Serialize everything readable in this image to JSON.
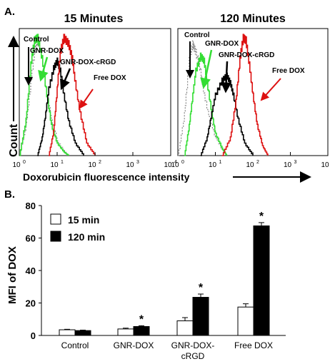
{
  "panel_a": {
    "label": "A.",
    "left_title": "15 Minutes",
    "right_title": "120 Minutes",
    "ylabel": "Count",
    "xlabel": "Doxorubicin fluorescence intensity",
    "x_ticks": [
      {
        "base": "10",
        "exp": "0",
        "value": 1
      },
      {
        "base": "10",
        "exp": "1",
        "value": 10
      },
      {
        "base": "10",
        "exp": "2",
        "value": 100
      },
      {
        "base": "10",
        "exp": "3",
        "value": 1000
      },
      {
        "base": "10",
        "exp": "4",
        "value": 10000
      }
    ],
    "left_annotations": [
      "Control",
      "GNR-DOX",
      "GNR-DOX-cRGD",
      "Free DOX"
    ],
    "right_annotations": [
      "Control",
      "GNR-DOX",
      "GNR-DOX-cRGD",
      "Free DOX"
    ],
    "colors": {
      "control": "#888888",
      "gnr_dox": "#33dd33",
      "gnr_dox_crgd": "#000000",
      "free_dox": "#dd1111"
    }
  },
  "panel_b": {
    "label": "B.",
    "ylabel": "MFI of DOX",
    "legend": [
      "15 min",
      "120 min"
    ],
    "y_ticks": [
      "0",
      "20",
      "40",
      "60",
      "80"
    ],
    "categories": [
      "Control",
      "GNR-DOX",
      "GNR-DOX-\ncRGD",
      "Free DOX"
    ],
    "significance_mark": "*"
  },
  "chart_data": [
    {
      "type": "line",
      "title": "15 Minutes",
      "xlabel": "Doxorubicin fluorescence intensity",
      "ylabel": "Count",
      "x_scale": "log",
      "xlim": [
        1,
        10000
      ],
      "series": [
        {
          "name": "Control",
          "style": "dotted",
          "color": "#888888",
          "x": [
            1,
            1.5,
            2,
            2.5,
            3,
            4,
            5,
            7,
            10,
            15,
            20
          ],
          "y": [
            0,
            0.25,
            0.6,
            0.85,
            0.95,
            0.8,
            0.55,
            0.3,
            0.12,
            0.04,
            0
          ]
        },
        {
          "name": "GNR-DOX",
          "style": "solid",
          "color": "#33dd33",
          "x": [
            1,
            1.5,
            2,
            2.5,
            3,
            4,
            5,
            7,
            10,
            15,
            20
          ],
          "y": [
            0,
            0.3,
            0.75,
            0.95,
            0.97,
            0.8,
            0.55,
            0.25,
            0.1,
            0.03,
            0
          ]
        },
        {
          "name": "GNR-DOX-cRGD",
          "style": "solid",
          "color": "#000000",
          "x": [
            3,
            4,
            5,
            6,
            8,
            10,
            12,
            15,
            20,
            30,
            50
          ],
          "y": [
            0,
            0.15,
            0.35,
            0.55,
            0.72,
            0.78,
            0.7,
            0.5,
            0.28,
            0.1,
            0
          ]
        },
        {
          "name": "Free DOX",
          "style": "solid",
          "color": "#dd1111",
          "x": [
            6,
            8,
            10,
            12,
            15,
            20,
            25,
            30,
            40,
            60,
            100
          ],
          "y": [
            0,
            0.2,
            0.55,
            0.85,
            0.97,
            0.92,
            0.8,
            0.6,
            0.35,
            0.1,
            0
          ]
        }
      ]
    },
    {
      "type": "line",
      "title": "120 Minutes",
      "xlabel": "Doxorubicin fluorescence intensity",
      "ylabel": "Count",
      "x_scale": "log",
      "xlim": [
        1,
        10000
      ],
      "series": [
        {
          "name": "Control",
          "style": "dotted",
          "color": "#888888",
          "x": [
            1,
            1.5,
            2,
            2.5,
            3,
            4,
            5,
            7,
            10,
            15,
            20
          ],
          "y": [
            0,
            0.35,
            0.8,
            0.92,
            0.85,
            0.7,
            0.5,
            0.3,
            0.15,
            0.05,
            0
          ]
        },
        {
          "name": "GNR-DOX",
          "style": "solid",
          "color": "#33dd33",
          "x": [
            1.5,
            2,
            2.5,
            3,
            4,
            5,
            6,
            8,
            10,
            15,
            20
          ],
          "y": [
            0,
            0.25,
            0.5,
            0.7,
            0.82,
            0.78,
            0.6,
            0.35,
            0.18,
            0.06,
            0
          ]
        },
        {
          "name": "GNR-DOX-cRGD",
          "style": "solid",
          "color": "#000000",
          "x": [
            4,
            6,
            8,
            10,
            15,
            20,
            25,
            30,
            40,
            60,
            100
          ],
          "y": [
            0,
            0.15,
            0.35,
            0.5,
            0.62,
            0.66,
            0.6,
            0.5,
            0.3,
            0.1,
            0
          ]
        },
        {
          "name": "Free DOX",
          "style": "solid",
          "color": "#dd1111",
          "x": [
            15,
            25,
            35,
            45,
            55,
            65,
            80,
            100,
            130,
            180,
            250
          ],
          "y": [
            0,
            0.15,
            0.45,
            0.8,
            0.97,
            0.95,
            0.75,
            0.5,
            0.25,
            0.08,
            0
          ]
        }
      ]
    },
    {
      "type": "bar",
      "ylabel": "MFI of DOX",
      "ylim": [
        0,
        80
      ],
      "categories": [
        "Control",
        "GNR-DOX",
        "GNR-DOX-cRGD",
        "Free DOX"
      ],
      "series": [
        {
          "name": "15 min",
          "values": [
            3.5,
            4,
            9,
            17.5
          ],
          "errors": [
            0.3,
            0.5,
            2,
            2
          ],
          "color": "#ffffff"
        },
        {
          "name": "120 min",
          "values": [
            3,
            5.5,
            23.5,
            67.5
          ],
          "errors": [
            0.3,
            0.5,
            2,
            2
          ],
          "color": "#000000"
        }
      ],
      "significant": [
        false,
        true,
        true,
        true
      ],
      "legend_position": "top-left",
      "grid": false
    }
  ]
}
